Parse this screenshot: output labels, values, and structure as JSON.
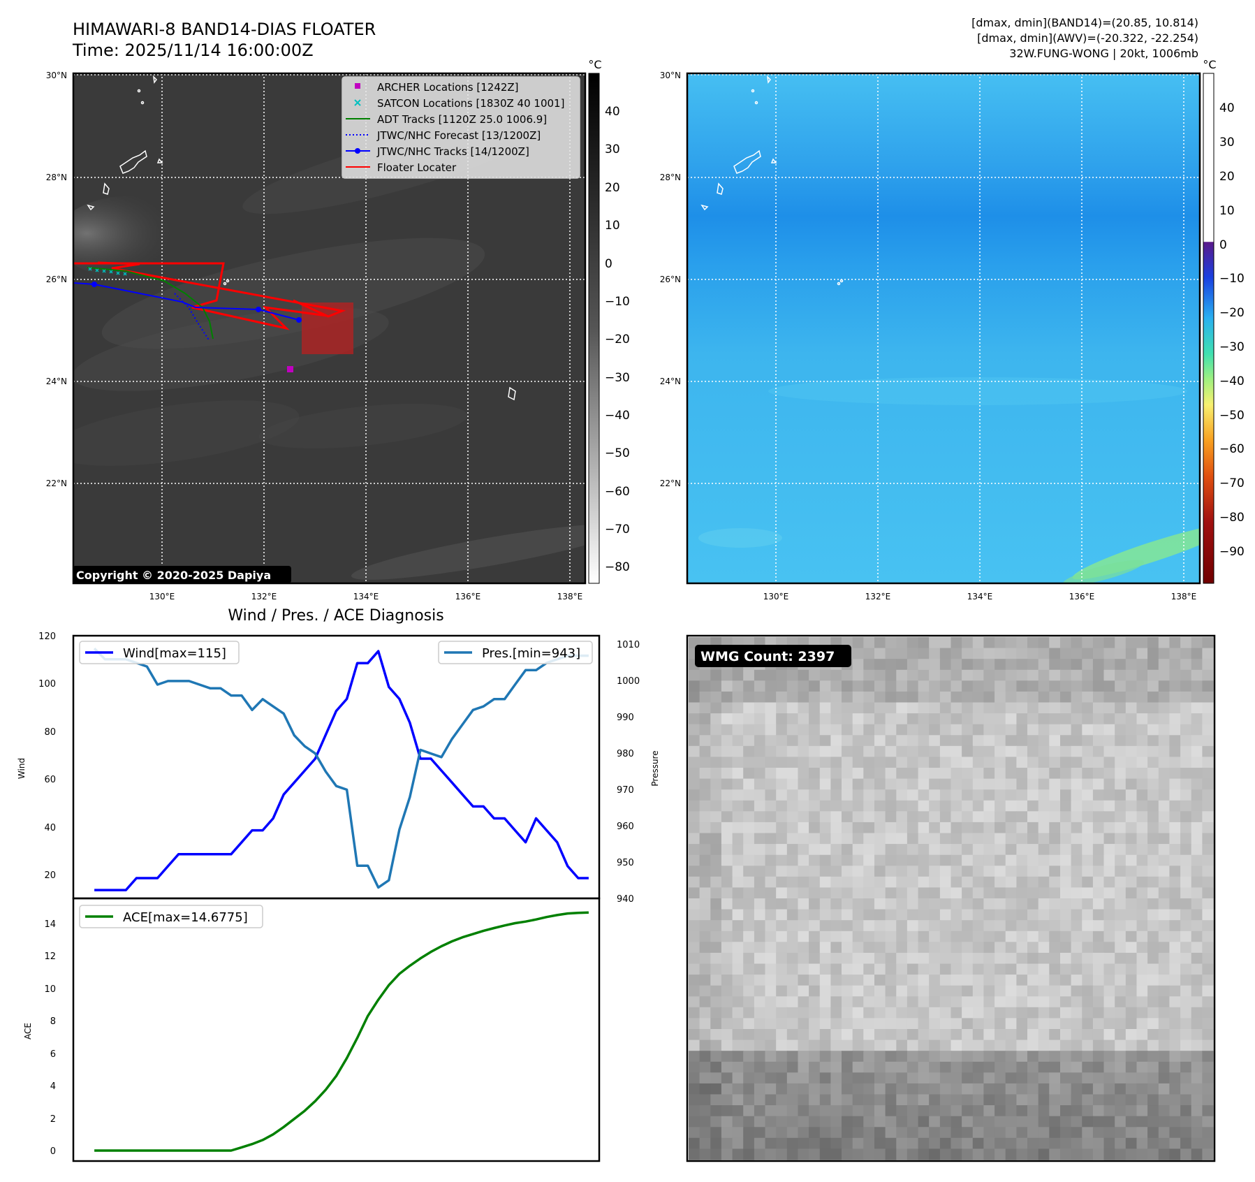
{
  "header": {
    "title_line1": "HIMAWARI-8 BAND14-DIAS FLOATER",
    "title_line2": "Time: 2025/11/14 16:00:00Z",
    "stats_line1": "[dmax, dmin](BAND14)=(20.85, 10.814)",
    "stats_line2": "[dmax, dmin](AWV)=(-20.322, -22.254)",
    "stats_line3": "32W.FUNG-WONG | 20kt, 1006mb"
  },
  "copyright": "Copyright © 2020-2025 Dapiya",
  "wmg_label": "WMG Count: 2397",
  "colors": {
    "wind": "#0000ff",
    "pres": "#1f77b4",
    "ace": "#008000",
    "archer": "#c000c0",
    "satcon": "#00c0c0",
    "adt": "#008000",
    "jtwc": "#0000ff",
    "floater": "#ff0000",
    "ir_background": "#3a3a3a",
    "awv_background": "#3db5ee"
  },
  "map": {
    "lat_labels": [
      "30°N",
      "28°N",
      "26°N",
      "24°N",
      "22°N"
    ],
    "lon_labels": [
      "130°E",
      "132°E",
      "134°E",
      "136°E",
      "138°E"
    ],
    "legend": [
      {
        "label": "ARCHER Locations [1242Z]",
        "marker": "square",
        "color": "#c000c0"
      },
      {
        "label": "SATCON Locations [1830Z 40 1001]",
        "marker": "x",
        "color": "#00c0c0"
      },
      {
        "label": "ADT Tracks [1120Z 25.0 1006.9]",
        "marker": "solid",
        "color": "#008000"
      },
      {
        "label": "JTWC/NHC Forecast [13/1200Z]",
        "marker": "dotted",
        "color": "#0000ff"
      },
      {
        "label": "JTWC/NHC Tracks [14/1200Z]",
        "marker": "line-dot",
        "color": "#0000ff"
      },
      {
        "label": "Floater Locater",
        "marker": "solid",
        "color": "#ff0000"
      }
    ]
  },
  "ir_colorbar": {
    "unit": "°C",
    "ticks": [
      "40",
      "30",
      "20",
      "10",
      "0",
      "−10",
      "−20",
      "−30",
      "−40",
      "−50",
      "−60",
      "−70",
      "−80"
    ]
  },
  "awv_colorbar": {
    "unit": "°C",
    "ticks": [
      "40",
      "30",
      "20",
      "10",
      "0",
      "−10",
      "−20",
      "−30",
      "−40",
      "−50",
      "−60",
      "−70",
      "−80",
      "−90"
    ]
  },
  "diagnosis": {
    "title": "Wind / Pres. / ACE Diagnosis",
    "wind_label": "Wind",
    "pressure_label": "Pressure",
    "ace_label": "ACE",
    "wind_legend": "Wind[max=115]",
    "pres_legend": "Pres.[min=943]",
    "ace_legend": "ACE[max=14.6775]",
    "wind_ticks": [
      "120",
      "100",
      "80",
      "60",
      "40",
      "20"
    ],
    "pres_ticks": [
      "1010",
      "1000",
      "990",
      "980",
      "970",
      "960",
      "950",
      "940"
    ],
    "ace_ticks": [
      "14",
      "12",
      "10",
      "8",
      "6",
      "4",
      "2",
      "0"
    ]
  },
  "chart_data": [
    {
      "type": "line",
      "title": "Wind / Pres. / ACE Diagnosis",
      "ylabel": "Wind",
      "ylim": [
        10,
        120
      ],
      "y2label": "Pressure",
      "y2lim": [
        940,
        1012
      ],
      "x": [
        0,
        1,
        2,
        3,
        4,
        5,
        6,
        7,
        8,
        9,
        10,
        11,
        12,
        13,
        14,
        15,
        16,
        17,
        18,
        19,
        20,
        21,
        22,
        23,
        24,
        25,
        26,
        27,
        28,
        29,
        30,
        31,
        32,
        33,
        34,
        35,
        36,
        37,
        38,
        39,
        40,
        41,
        42,
        43,
        44,
        45,
        46,
        47
      ],
      "series": [
        {
          "name": "Wind[max=115]",
          "axis": "left",
          "values": [
            15,
            15,
            15,
            15,
            20,
            20,
            20,
            25,
            30,
            30,
            30,
            30,
            30,
            30,
            35,
            40,
            40,
            45,
            55,
            60,
            65,
            70,
            80,
            90,
            95,
            110,
            110,
            115,
            100,
            95,
            85,
            70,
            70,
            65,
            60,
            55,
            50,
            50,
            45,
            45,
            40,
            35,
            45,
            40,
            35,
            25,
            20,
            20
          ]
        },
        {
          "name": "Pres.[min=943]",
          "axis": "right",
          "values": [
            1009,
            1006,
            1006,
            1006,
            1005,
            1004,
            999,
            1000,
            1000,
            1000,
            999,
            998,
            998,
            996,
            996,
            992,
            995,
            993,
            991,
            985,
            982,
            980,
            975,
            971,
            970,
            949,
            949,
            943,
            945,
            959,
            968,
            981,
            980,
            979,
            984,
            988,
            992,
            993,
            995,
            995,
            999,
            1003,
            1003,
            1005,
            1006,
            1007,
            1007,
            1007
          ]
        },
        {
          "name": "ACE[max=14.6775]",
          "axis": "ace",
          "values": [
            0,
            0,
            0,
            0,
            0,
            0,
            0,
            0,
            0,
            0,
            0,
            0,
            0,
            0,
            0.2,
            0.4,
            0.65,
            1.0,
            1.45,
            1.95,
            2.45,
            3.05,
            3.75,
            4.6,
            5.7,
            6.95,
            8.3,
            9.3,
            10.2,
            10.9,
            11.4,
            11.85,
            12.25,
            12.6,
            12.9,
            13.15,
            13.35,
            13.55,
            13.72,
            13.88,
            14.02,
            14.12,
            14.25,
            14.4,
            14.52,
            14.62,
            14.66,
            14.68
          ]
        }
      ]
    }
  ]
}
